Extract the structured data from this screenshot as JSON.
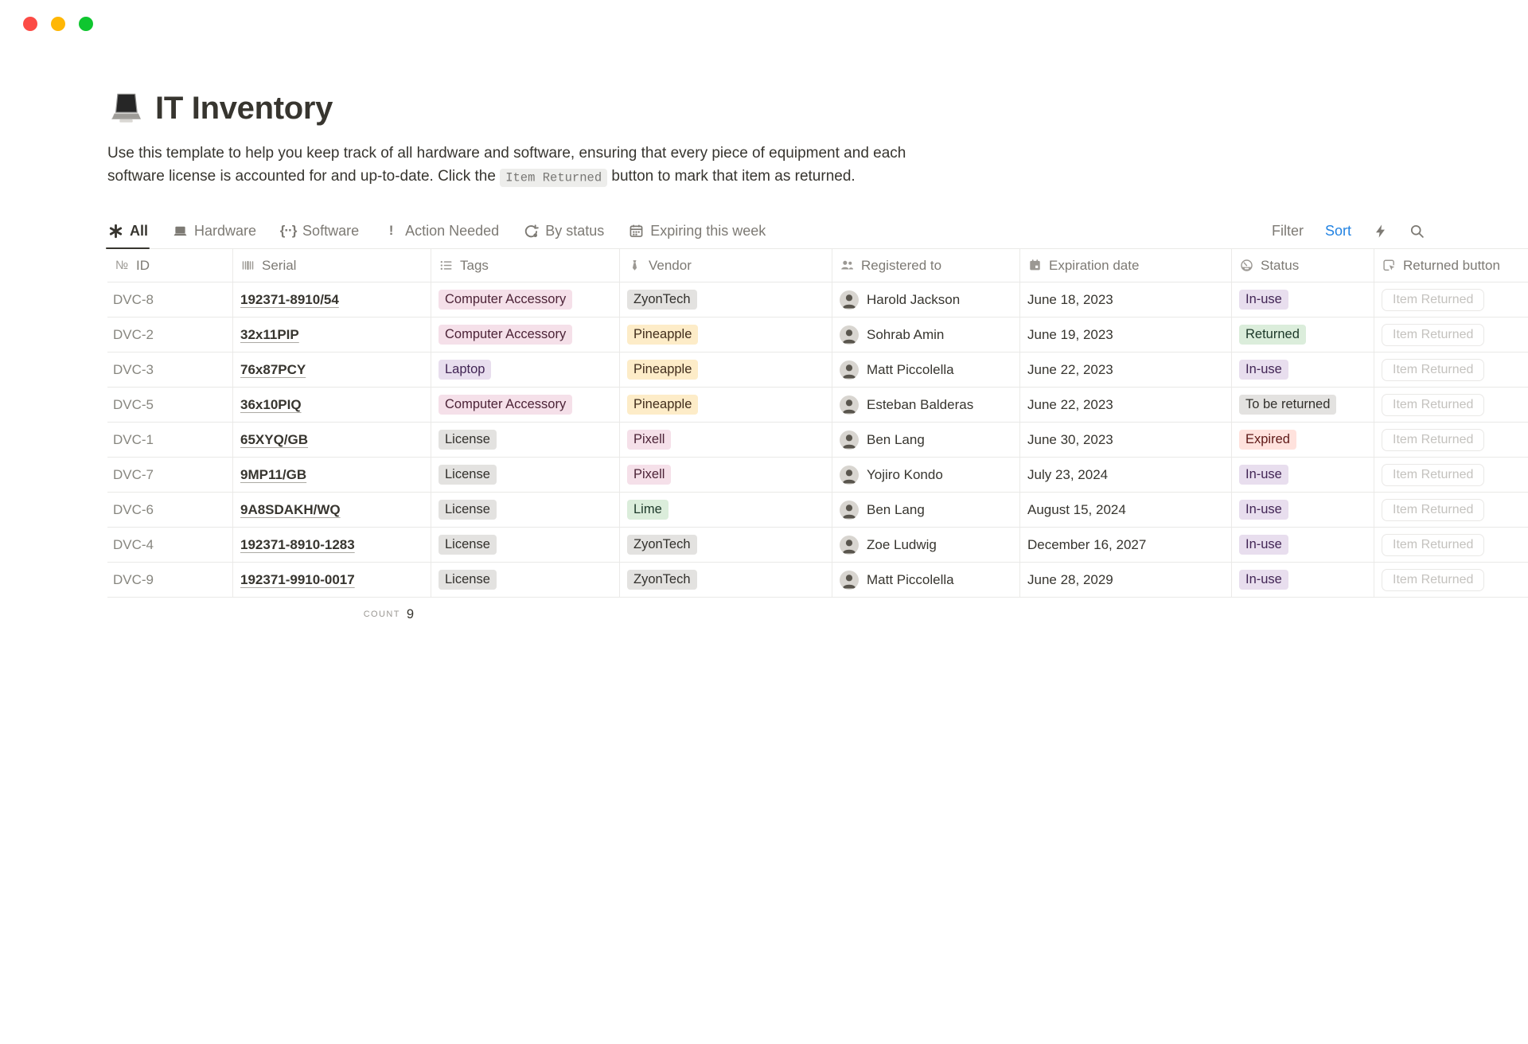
{
  "window": {
    "traffic_lights": [
      "#FC4B45",
      "#FFB705",
      "#0FC62F"
    ]
  },
  "page": {
    "icon": "laptop-emoji-icon",
    "title": "IT Inventory",
    "description_line1": "Use this template to help you keep track of all hardware and software, ensuring that every piece of equipment and each",
    "description_line2_pre": "software license is accounted for and up-to-date. Click the ",
    "description_code": "Item Returned",
    "description_line2_post": " button to mark that item as returned."
  },
  "toolbar": {
    "tabs": [
      {
        "label": "All",
        "icon": "asterisk-icon",
        "active": true
      },
      {
        "label": "Hardware",
        "icon": "laptop-icon",
        "active": false
      },
      {
        "label": "Software",
        "icon": "braces-icon",
        "active": false
      },
      {
        "label": "Action Needed",
        "icon": "exclamation-icon",
        "active": false
      },
      {
        "label": "By status",
        "icon": "by-status-icon",
        "active": false
      },
      {
        "label": "Expiring this week",
        "icon": "calendar-icon",
        "active": false
      }
    ],
    "filter_label": "Filter",
    "sort_label": "Sort",
    "sort_color": "#2383E2",
    "action_icons": [
      "lightning-icon",
      "search-icon"
    ]
  },
  "palette": {
    "pink": {
      "bg": "#F5E0E9",
      "text": "#4C2337"
    },
    "purple": {
      "bg": "#E8DEEE",
      "text": "#412454"
    },
    "yellow": {
      "bg": "#FDECC8",
      "text": "#402C1B"
    },
    "gray": {
      "bg": "#E3E2E0",
      "text": "#32302C"
    },
    "green": {
      "bg": "#DBEDDB",
      "text": "#1C3829"
    },
    "red": {
      "bg": "#FFE2DD",
      "text": "#5D1715"
    }
  },
  "table": {
    "columns": [
      {
        "label": "ID",
        "icon": "numero-icon"
      },
      {
        "label": "Serial",
        "icon": "barcode-icon"
      },
      {
        "label": "Tags",
        "icon": "list-icon"
      },
      {
        "label": "Vendor",
        "icon": "necktie-icon"
      },
      {
        "label": "Registered to",
        "icon": "people-icon"
      },
      {
        "label": "Expiration date",
        "icon": "calendar-filled-icon"
      },
      {
        "label": "Status",
        "icon": "gauge-icon"
      },
      {
        "label": "Returned button",
        "icon": "click-icon"
      }
    ],
    "rows": [
      {
        "id": "DVC-8",
        "serial": "192371-8910/54",
        "tag": {
          "label": "Computer Accessory",
          "color": "pink"
        },
        "vendor": {
          "label": "ZyonTech",
          "color": "gray"
        },
        "registered_to": "Harold Jackson",
        "expiration": "June 18, 2023",
        "status": {
          "label": "In-use",
          "color": "purple"
        },
        "button_label": "Item Returned"
      },
      {
        "id": "DVC-2",
        "serial": "32x11PIP",
        "tag": {
          "label": "Computer Accessory",
          "color": "pink"
        },
        "vendor": {
          "label": "Pineapple",
          "color": "yellow"
        },
        "registered_to": "Sohrab Amin",
        "expiration": "June 19, 2023",
        "status": {
          "label": "Returned",
          "color": "green"
        },
        "button_label": "Item Returned"
      },
      {
        "id": "DVC-3",
        "serial": "76x87PCY",
        "tag": {
          "label": "Laptop",
          "color": "purple"
        },
        "vendor": {
          "label": "Pineapple",
          "color": "yellow"
        },
        "registered_to": "Matt Piccolella",
        "expiration": "June 22, 2023",
        "status": {
          "label": "In-use",
          "color": "purple"
        },
        "button_label": "Item Returned"
      },
      {
        "id": "DVC-5",
        "serial": "36x10PIQ",
        "tag": {
          "label": "Computer Accessory",
          "color": "pink"
        },
        "vendor": {
          "label": "Pineapple",
          "color": "yellow"
        },
        "registered_to": "Esteban Balderas",
        "expiration": "June 22, 2023",
        "status": {
          "label": "To be returned",
          "color": "gray"
        },
        "button_label": "Item Returned"
      },
      {
        "id": "DVC-1",
        "serial": "65XYQ/GB",
        "tag": {
          "label": "License",
          "color": "gray"
        },
        "vendor": {
          "label": "Pixell",
          "color": "pink"
        },
        "registered_to": "Ben Lang",
        "expiration": "June 30, 2023",
        "status": {
          "label": "Expired",
          "color": "red"
        },
        "button_label": "Item Returned"
      },
      {
        "id": "DVC-7",
        "serial": "9MP11/GB",
        "tag": {
          "label": "License",
          "color": "gray"
        },
        "vendor": {
          "label": "Pixell",
          "color": "pink"
        },
        "registered_to": "Yojiro Kondo",
        "expiration": "July 23, 2024",
        "status": {
          "label": "In-use",
          "color": "purple"
        },
        "button_label": "Item Returned"
      },
      {
        "id": "DVC-6",
        "serial": "9A8SDAKH/WQ",
        "tag": {
          "label": "License",
          "color": "gray"
        },
        "vendor": {
          "label": "Lime",
          "color": "green"
        },
        "registered_to": "Ben Lang",
        "expiration": "August 15, 2024",
        "status": {
          "label": "In-use",
          "color": "purple"
        },
        "button_label": "Item Returned"
      },
      {
        "id": "DVC-4",
        "serial": "192371-8910-1283",
        "tag": {
          "label": "License",
          "color": "gray"
        },
        "vendor": {
          "label": "ZyonTech",
          "color": "gray"
        },
        "registered_to": "Zoe Ludwig",
        "expiration": "December 16, 2027",
        "status": {
          "label": "In-use",
          "color": "purple"
        },
        "button_label": "Item Returned"
      },
      {
        "id": "DVC-9",
        "serial": "192371-9910-0017",
        "tag": {
          "label": "License",
          "color": "gray"
        },
        "vendor": {
          "label": "ZyonTech",
          "color": "gray"
        },
        "registered_to": "Matt Piccolella",
        "expiration": "June 28, 2029",
        "status": {
          "label": "In-use",
          "color": "purple"
        },
        "button_label": "Item Returned"
      }
    ],
    "footer": {
      "count_label": "COUNT",
      "count_value": "9"
    }
  }
}
